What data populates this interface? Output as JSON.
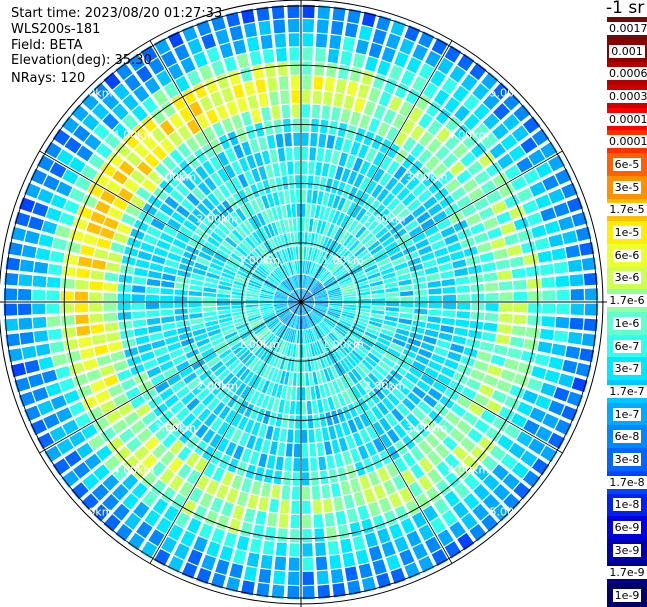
{
  "header": {
    "start_time": "Start time: 2023/08/20 01:27:33",
    "instrument": "WLS200s-181",
    "field": "Field: BETA",
    "elevation": "Elevation(deg): 35.30",
    "nrays": "NRays: 120"
  },
  "colorbar": {
    "unit": "-1 sr",
    "labels": [
      "0.0017",
      "0.001",
      "0.0006",
      "0.0003",
      "0.00017",
      "0.0001",
      "6e-5",
      "3e-5",
      "1.7e-5",
      "1e-5",
      "6e-6",
      "3e-6",
      "1.7e-6",
      "1e-6",
      "6e-7",
      "3e-7",
      "1.7e-7",
      "1e-7",
      "6e-8",
      "3e-8",
      "1.7e-8",
      "1e-8",
      "6e-9",
      "3e-9",
      "1.7e-9",
      "1e-9"
    ],
    "colors": [
      "#6e0a0a",
      "#8c0000",
      "#b00000",
      "#d00000",
      "#ff0000",
      "#ff3000",
      "#ff6000",
      "#ff9000",
      "#ffc000",
      "#ffee00",
      "#eeff30",
      "#ccff50",
      "#90ffa0",
      "#60ffd0",
      "#30ffee",
      "#00e8ff",
      "#00c8ff",
      "#00a8ff",
      "#0088ff",
      "#0066ff",
      "#0044ff",
      "#0022ee",
      "#0000dd",
      "#0000aa",
      "#000088",
      "#000066"
    ]
  },
  "chart_data": {
    "type": "heatmap",
    "projection": "polar PPI",
    "field": "BETA",
    "units": "sr-1",
    "elevation_deg": 35.3,
    "n_rays": 120,
    "range_rings_km": [
      1.0,
      2.0,
      3.0,
      4.0,
      5.0
    ],
    "range_labels": [
      "1.00km",
      "2.00km",
      "3.00km",
      "4.00km",
      "5.00km"
    ],
    "max_range_km": 5.1,
    "color_scale": "log",
    "range_bins": [
      {
        "range_km": 0.2,
        "beta": 1e-07
      },
      {
        "range_km": 0.8,
        "beta": 5e-07
      },
      {
        "range_km": 1.5,
        "beta": 4e-07
      },
      {
        "range_km": 2.2,
        "beta": 3e-07
      },
      {
        "range_km": 2.8,
        "beta": 3e-07
      },
      {
        "range_km": 3.4,
        "beta": 1.7e-06
      },
      {
        "range_km": 4.0,
        "beta": 1e-06
      },
      {
        "range_km": 4.4,
        "beta": 2e-07
      },
      {
        "range_km": 4.9,
        "beta": 5e-08
      }
    ]
  }
}
